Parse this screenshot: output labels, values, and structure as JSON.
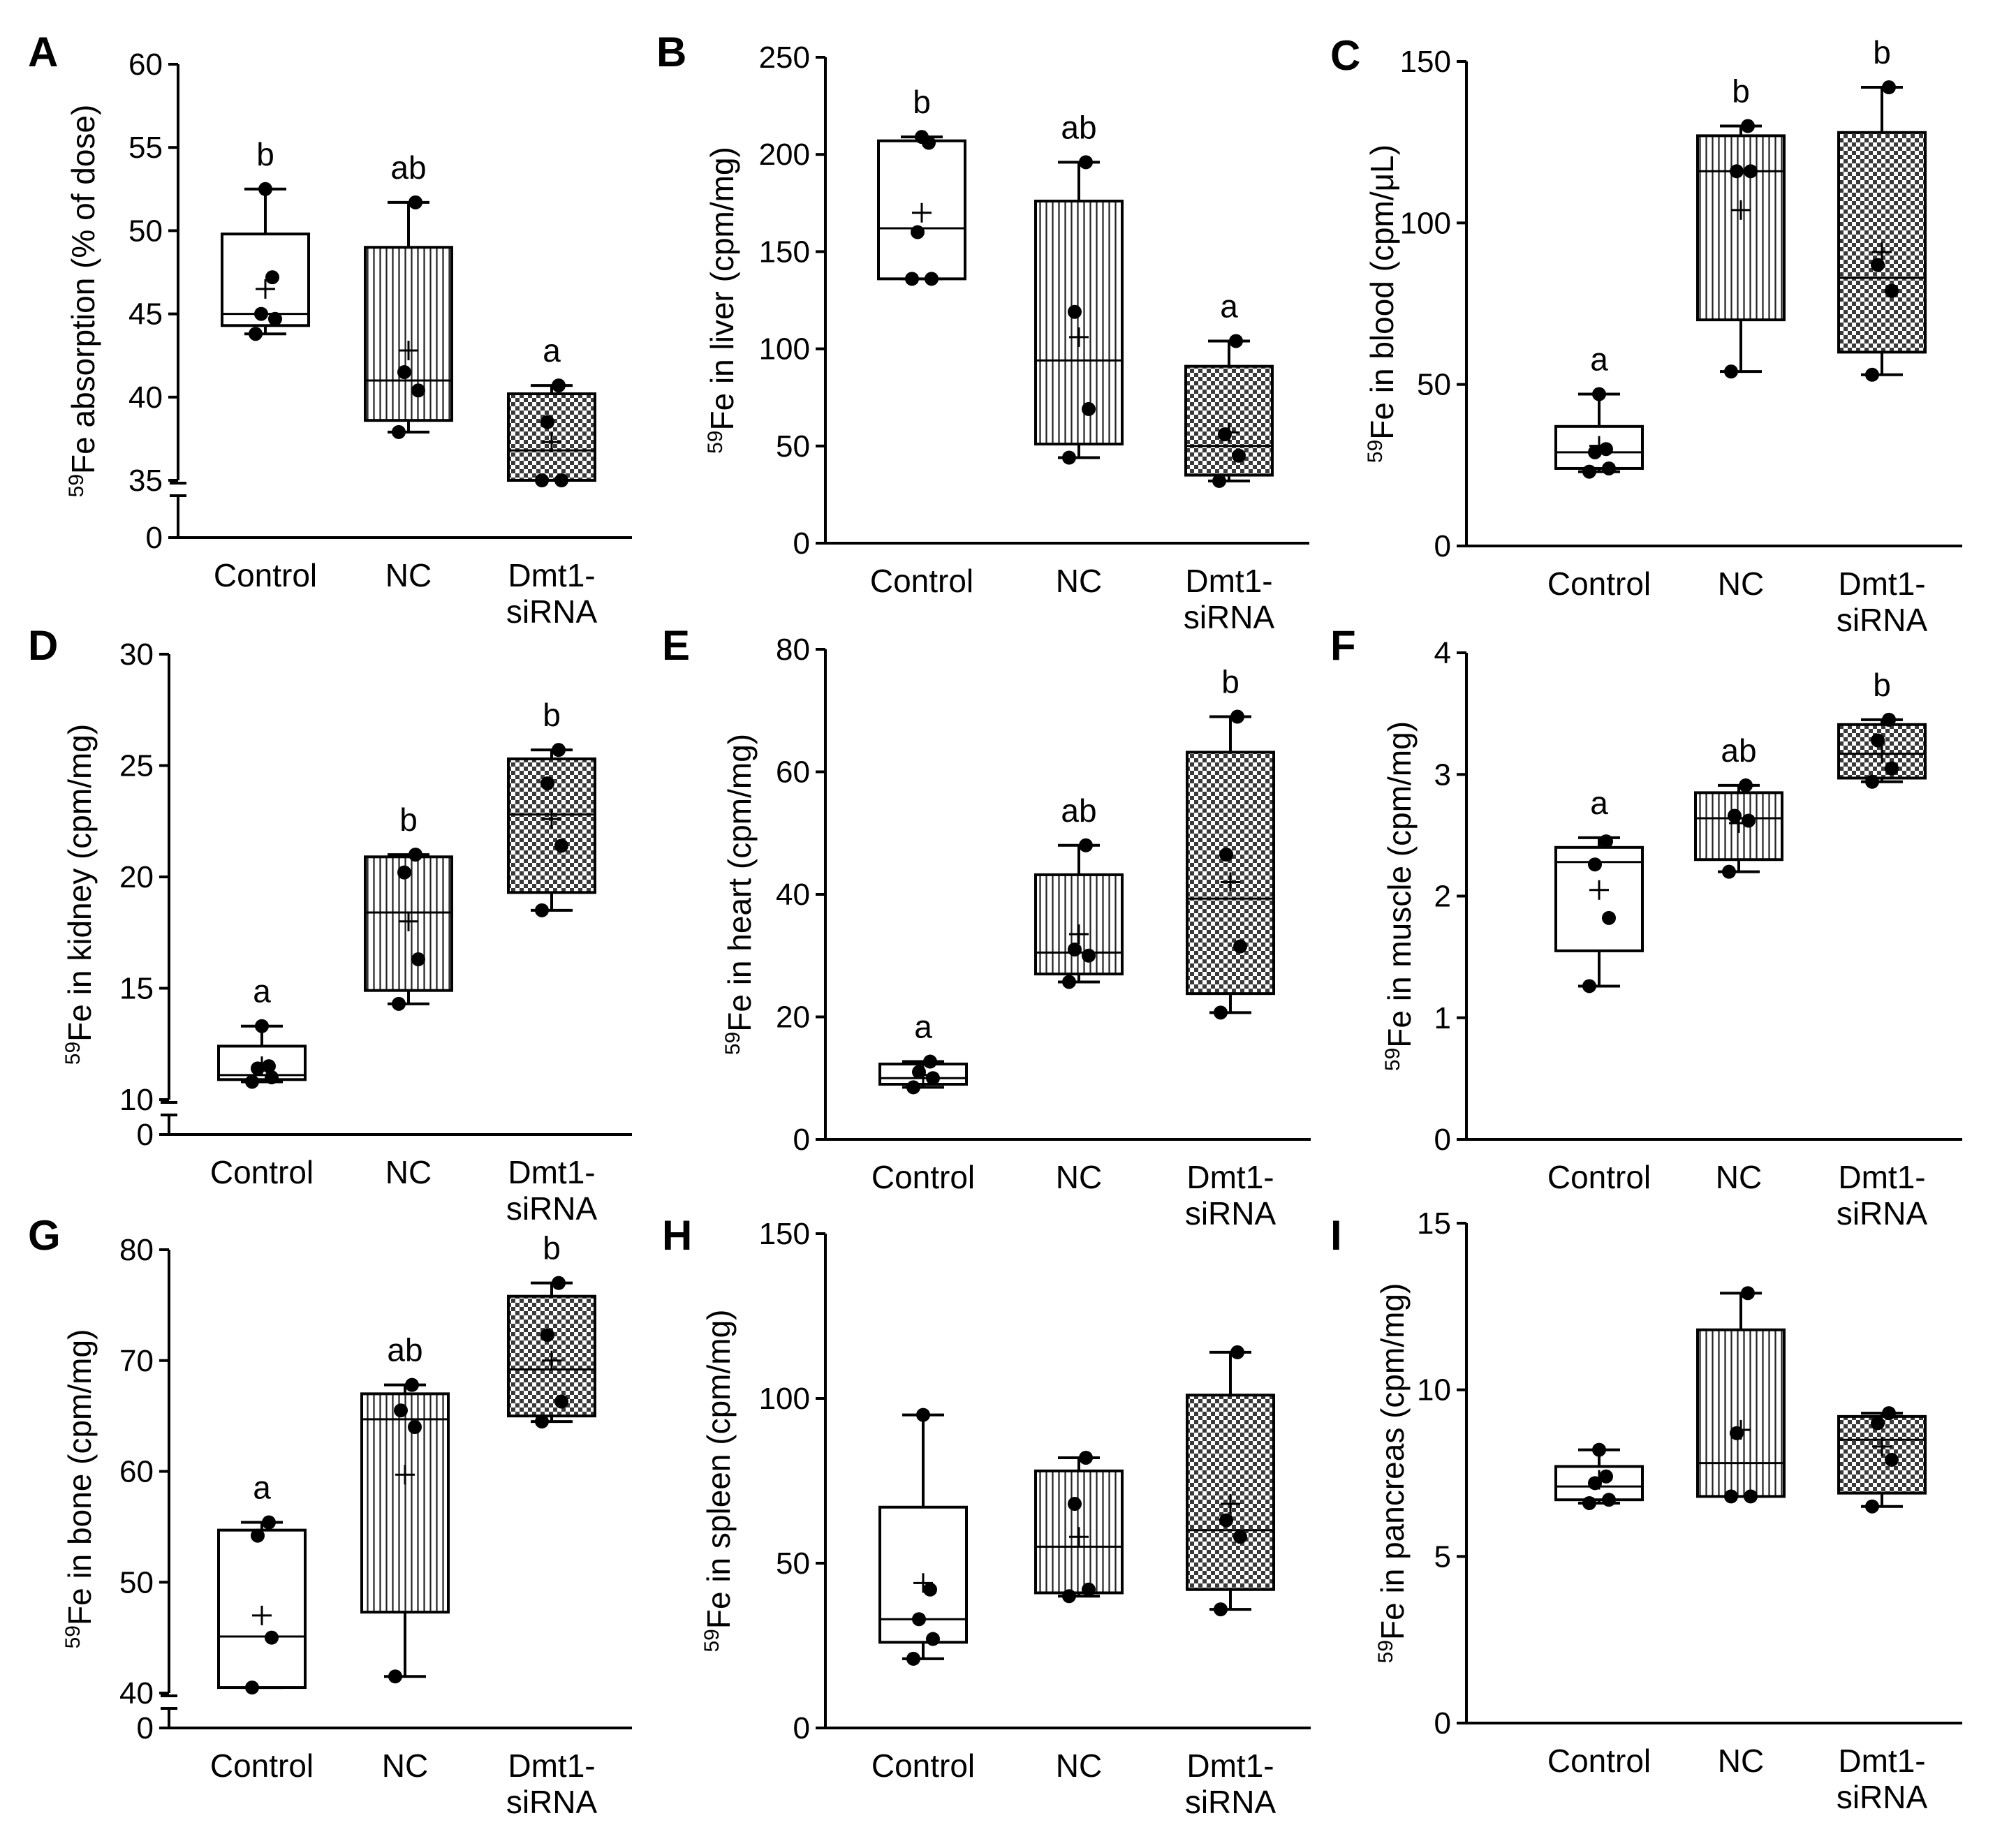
{
  "figure": {
    "colors": {
      "ink": "#000000",
      "white_fill": "#ffffff",
      "pattern_fill": "#ffffff"
    },
    "legend": {
      "box_fill_patterns": [
        "plain",
        "vertical-lines",
        "checkerboard"
      ],
      "mean_marker": "+",
      "point_marker": "filled-circle"
    }
  },
  "chart_data": [
    {
      "id": "A",
      "type": "box",
      "letter": "A",
      "ylabel_sup": "59",
      "ylabel_text": "Fe absorption (% of dose)",
      "ylim": [
        35,
        60
      ],
      "yticks": [
        "60",
        "55",
        "50",
        "45",
        "40",
        "35"
      ],
      "axis_break": true,
      "axis_zero": "0",
      "categories": [
        "Control",
        "NC",
        "Dmt1-siRNA"
      ],
      "groups": [
        {
          "name": "Control",
          "pattern": "plain",
          "min": 43.8,
          "q1": 44.3,
          "median": 45.0,
          "q3": 49.8,
          "max": 52.5,
          "mean": 46.5,
          "points": [
            43.8,
            44.7,
            45.0,
            47.2,
            52.5
          ],
          "letter": "b"
        },
        {
          "name": "NC",
          "pattern": "vertical-lines",
          "min": 37.9,
          "q1": 38.6,
          "median": 41.0,
          "q3": 49.0,
          "max": 51.7,
          "mean": 42.8,
          "points": [
            37.9,
            40.4,
            41.5,
            51.7
          ],
          "letter": "ab"
        },
        {
          "name": "Dmt1-siRNA",
          "pattern": "checkerboard",
          "min": 35.0,
          "q1": 35.0,
          "median": 36.8,
          "q3": 40.2,
          "max": 40.7,
          "mean": 37.3,
          "points": [
            35.0,
            35.0,
            38.5,
            40.7
          ],
          "letter": "a"
        }
      ]
    },
    {
      "id": "B",
      "type": "box",
      "letter": "B",
      "ylabel_sup": "59",
      "ylabel_text": "Fe in liver (cpm/mg)",
      "ylim": [
        0,
        250
      ],
      "yticks": [
        "250",
        "200",
        "150",
        "100",
        "50",
        "0"
      ],
      "axis_break": false,
      "categories": [
        "Control",
        "NC",
        "Dmt1-siRNA"
      ],
      "groups": [
        {
          "name": "Control",
          "pattern": "plain",
          "min": 136,
          "q1": 136,
          "median": 162,
          "q3": 207,
          "max": 209,
          "mean": 170,
          "points": [
            136,
            136,
            160,
            206,
            209
          ],
          "letter": "b"
        },
        {
          "name": "NC",
          "pattern": "vertical-lines",
          "min": 44,
          "q1": 51,
          "median": 94,
          "q3": 176,
          "max": 196,
          "mean": 106,
          "points": [
            44,
            69,
            119,
            196
          ],
          "letter": "ab"
        },
        {
          "name": "Dmt1-siRNA",
          "pattern": "checkerboard",
          "min": 32,
          "q1": 35,
          "median": 50,
          "q3": 91,
          "max": 104,
          "mean": 57,
          "points": [
            32,
            45,
            56,
            104
          ],
          "letter": "a"
        }
      ]
    },
    {
      "id": "C",
      "type": "box",
      "letter": "C",
      "ylabel_sup": "59",
      "ylabel_text": "Fe in blood (cpm/μL)",
      "ylim": [
        0,
        150
      ],
      "yticks": [
        "150",
        "100",
        "50",
        "0"
      ],
      "axis_break": false,
      "categories": [
        "Control",
        "NC",
        "Dmt1-siRNA"
      ],
      "groups": [
        {
          "name": "Control",
          "pattern": "plain",
          "min": 23,
          "q1": 24,
          "median": 29,
          "q3": 37,
          "max": 47,
          "mean": 31,
          "points": [
            23,
            24,
            29,
            30,
            47
          ],
          "letter": "a"
        },
        {
          "name": "NC",
          "pattern": "vertical-lines",
          "min": 54,
          "q1": 70,
          "median": 116,
          "q3": 127,
          "max": 130,
          "mean": 104,
          "points": [
            54,
            116,
            116,
            130
          ],
          "letter": "b"
        },
        {
          "name": "Dmt1-siRNA",
          "pattern": "checkerboard",
          "min": 53,
          "q1": 60,
          "median": 83,
          "q3": 128,
          "max": 142,
          "mean": 91,
          "points": [
            53,
            79,
            87,
            142
          ],
          "letter": "b"
        }
      ]
    },
    {
      "id": "D",
      "type": "box",
      "letter": "D",
      "ylabel_sup": "59",
      "ylabel_text": "Fe in kidney (cpm/mg)",
      "ylim": [
        10,
        30
      ],
      "yticks": [
        "30",
        "25",
        "20",
        "15",
        "10"
      ],
      "axis_break": true,
      "axis_zero": "0",
      "categories": [
        "Control",
        "NC",
        "Dmt1-siRNA"
      ],
      "groups": [
        {
          "name": "Control",
          "pattern": "plain",
          "min": 10.8,
          "q1": 10.9,
          "median": 11.1,
          "q3": 12.4,
          "max": 13.3,
          "mean": 11.5,
          "points": [
            10.8,
            11.0,
            11.4,
            11.5,
            13.3
          ],
          "letter": "a"
        },
        {
          "name": "NC",
          "pattern": "vertical-lines",
          "min": 14.3,
          "q1": 14.9,
          "median": 18.4,
          "q3": 20.9,
          "max": 21.0,
          "mean": 18.0,
          "points": [
            14.3,
            16.3,
            20.2,
            21.0
          ],
          "letter": "b"
        },
        {
          "name": "Dmt1-siRNA",
          "pattern": "checkerboard",
          "min": 18.5,
          "q1": 19.3,
          "median": 22.8,
          "q3": 25.3,
          "max": 25.7,
          "mean": 22.6,
          "points": [
            18.5,
            21.4,
            24.2,
            25.7
          ],
          "letter": "b"
        }
      ]
    },
    {
      "id": "E",
      "type": "box",
      "letter": "E",
      "ylabel_sup": "59",
      "ylabel_text": "Fe in heart (cpm/mg)",
      "ylim": [
        0,
        80
      ],
      "yticks": [
        "80",
        "60",
        "40",
        "20",
        "0"
      ],
      "axis_break": false,
      "categories": [
        "Control",
        "NC",
        "Dmt1-siRNA"
      ],
      "groups": [
        {
          "name": "Control",
          "pattern": "plain",
          "min": 8.5,
          "q1": 9,
          "median": 10,
          "q3": 12.3,
          "max": 12.7,
          "mean": 10.5,
          "points": [
            8.5,
            10,
            11,
            12.7
          ],
          "letter": "a"
        },
        {
          "name": "NC",
          "pattern": "vertical-lines",
          "min": 25.7,
          "q1": 27,
          "median": 30.5,
          "q3": 43.2,
          "max": 48,
          "mean": 33.5,
          "points": [
            25.7,
            30,
            31,
            48
          ],
          "letter": "ab"
        },
        {
          "name": "Dmt1-siRNA",
          "pattern": "checkerboard",
          "min": 20.7,
          "q1": 23.8,
          "median": 39.3,
          "q3": 63.2,
          "max": 69,
          "mean": 42,
          "points": [
            20.7,
            31.5,
            46.5,
            69
          ],
          "letter": "b"
        }
      ]
    },
    {
      "id": "F",
      "type": "box",
      "letter": "F",
      "ylabel_sup": "59",
      "ylabel_text": "Fe in muscle (cpm/mg)",
      "ylim": [
        0,
        4
      ],
      "yticks": [
        "4",
        "3",
        "2",
        "1",
        "0"
      ],
      "axis_break": false,
      "categories": [
        "Control",
        "NC",
        "Dmt1-siRNA"
      ],
      "groups": [
        {
          "name": "Control",
          "pattern": "plain",
          "min": 1.26,
          "q1": 1.55,
          "median": 2.28,
          "q3": 2.4,
          "max": 2.48,
          "mean": 2.05,
          "points": [
            1.26,
            1.82,
            2.26,
            2.45
          ],
          "letter": "a"
        },
        {
          "name": "NC",
          "pattern": "vertical-lines",
          "min": 2.2,
          "q1": 2.3,
          "median": 2.64,
          "q3": 2.85,
          "max": 2.91,
          "mean": 2.6,
          "points": [
            2.2,
            2.62,
            2.66,
            2.91
          ],
          "letter": "ab"
        },
        {
          "name": "Dmt1-siRNA",
          "pattern": "checkerboard",
          "min": 2.94,
          "q1": 2.97,
          "median": 3.17,
          "q3": 3.41,
          "max": 3.45,
          "mean": 3.17,
          "points": [
            2.94,
            3.05,
            3.28,
            3.45
          ],
          "letter": "b"
        }
      ]
    },
    {
      "id": "G",
      "type": "box",
      "letter": "G",
      "ylabel_sup": "59",
      "ylabel_text": "Fe in bone (cpm/mg)",
      "ylim": [
        40,
        80
      ],
      "yticks": [
        "80",
        "70",
        "60",
        "50",
        "40"
      ],
      "axis_break": true,
      "axis_zero": "0",
      "categories": [
        "Control",
        "NC",
        "Dmt1-siRNA"
      ],
      "groups": [
        {
          "name": "Control",
          "pattern": "plain",
          "min": 40.5,
          "q1": 40.5,
          "median": 45.1,
          "q3": 54.7,
          "max": 55.4,
          "mean": 47.0,
          "points": [
            40.5,
            45.0,
            54.2,
            55.4
          ],
          "letter": "a"
        },
        {
          "name": "NC",
          "pattern": "vertical-lines",
          "min": 41.5,
          "q1": 47.3,
          "median": 64.7,
          "q3": 67.0,
          "max": 67.8,
          "mean": 59.7,
          "points": [
            41.5,
            64.0,
            65.5,
            67.8
          ],
          "letter": "ab"
        },
        {
          "name": "Dmt1-siRNA",
          "pattern": "checkerboard",
          "min": 64.5,
          "q1": 65.0,
          "median": 69.2,
          "q3": 75.8,
          "max": 77.0,
          "mean": 70.0,
          "points": [
            64.5,
            66.3,
            72.3,
            77.0
          ],
          "letter": "b"
        }
      ]
    },
    {
      "id": "H",
      "type": "box",
      "letter": "H",
      "ylabel_sup": "59",
      "ylabel_text": "Fe in spleen (cpm/mg)",
      "ylim": [
        0,
        150
      ],
      "yticks": [
        "150",
        "100",
        "50",
        "0"
      ],
      "axis_break": false,
      "categories": [
        "Control",
        "NC",
        "Dmt1-siRNA"
      ],
      "groups": [
        {
          "name": "Control",
          "pattern": "plain",
          "min": 21,
          "q1": 26,
          "median": 33,
          "q3": 67,
          "max": 95,
          "mean": 44,
          "points": [
            21,
            27,
            33,
            42,
            95
          ],
          "letter": ""
        },
        {
          "name": "NC",
          "pattern": "vertical-lines",
          "min": 40,
          "q1": 41,
          "median": 55,
          "q3": 78,
          "max": 82,
          "mean": 58,
          "points": [
            40,
            42,
            68,
            82
          ],
          "letter": ""
        },
        {
          "name": "Dmt1-siRNA",
          "pattern": "checkerboard",
          "min": 36,
          "q1": 42,
          "median": 60,
          "q3": 101,
          "max": 114,
          "mean": 68,
          "points": [
            36,
            58,
            63,
            114
          ],
          "letter": ""
        }
      ]
    },
    {
      "id": "I",
      "type": "box",
      "letter": "I",
      "ylabel_sup": "59",
      "ylabel_text": "Fe in pancreas (cpm/mg)",
      "ylim": [
        0,
        15
      ],
      "yticks": [
        "15",
        "10",
        "5",
        "0"
      ],
      "axis_break": false,
      "categories": [
        "Control",
        "NC",
        "Dmt1-siRNA"
      ],
      "groups": [
        {
          "name": "Control",
          "pattern": "plain",
          "min": 6.6,
          "q1": 6.7,
          "median": 7.1,
          "q3": 7.7,
          "max": 8.2,
          "mean": 7.3,
          "points": [
            6.6,
            6.7,
            7.2,
            7.4,
            8.2
          ],
          "letter": ""
        },
        {
          "name": "NC",
          "pattern": "vertical-lines",
          "min": 6.8,
          "q1": 6.8,
          "median": 7.8,
          "q3": 11.8,
          "max": 12.9,
          "mean": 8.8,
          "points": [
            6.8,
            6.8,
            8.7,
            12.9
          ],
          "letter": ""
        },
        {
          "name": "Dmt1-siRNA",
          "pattern": "checkerboard",
          "min": 6.5,
          "q1": 6.9,
          "median": 8.5,
          "q3": 9.2,
          "max": 9.3,
          "mean": 8.3,
          "points": [
            6.5,
            7.9,
            9.0,
            9.3
          ],
          "letter": ""
        }
      ]
    }
  ]
}
